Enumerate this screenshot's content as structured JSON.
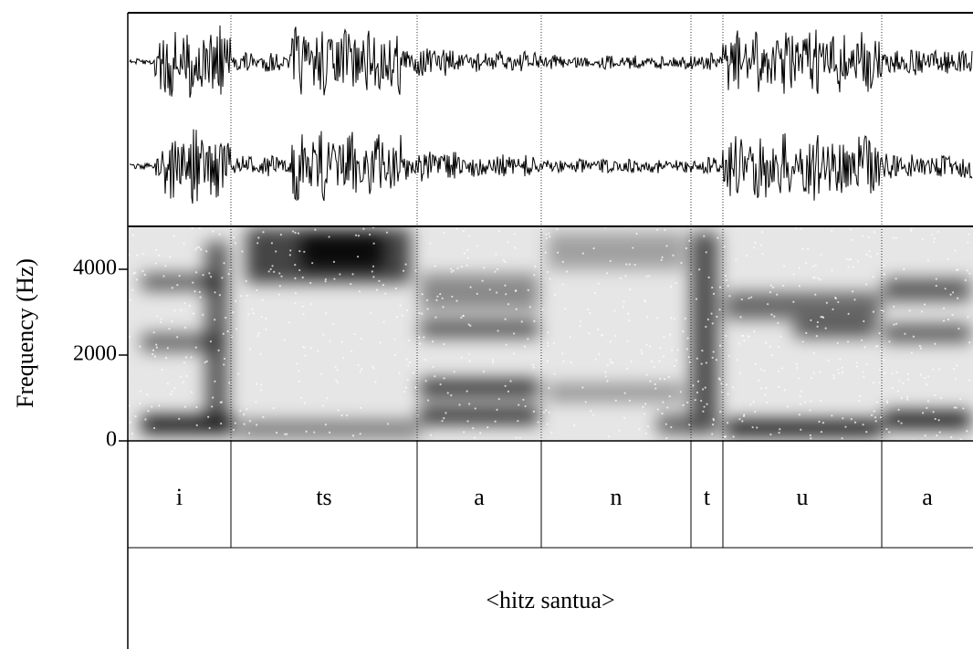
{
  "chart_data": {
    "type": "spectrogram",
    "y_label": "Frequency (Hz)",
    "ylim": [
      0,
      5000
    ],
    "yticks": [
      0,
      2000,
      4000
    ],
    "tiers": [
      {
        "intervals": [
          "i",
          "ts",
          "a",
          "n",
          "t",
          "u",
          "a"
        ]
      },
      {
        "intervals": [
          "<hitz santua>"
        ]
      }
    ]
  }
}
